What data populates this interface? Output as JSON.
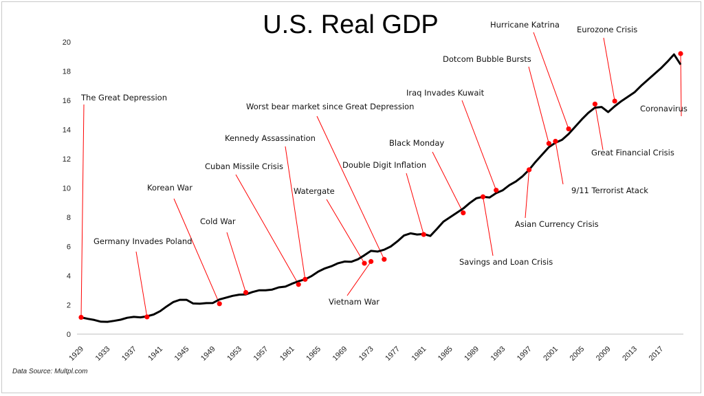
{
  "chart_data": {
    "type": "line",
    "title": "U.S. Real GDP",
    "xlabel": "",
    "ylabel": "",
    "ylim": [
      0,
      20
    ],
    "xlim": [
      1929,
      2020
    ],
    "yticks": [
      0,
      2,
      4,
      6,
      8,
      10,
      12,
      14,
      16,
      18,
      20
    ],
    "xticks": [
      1929,
      1933,
      1937,
      1941,
      1945,
      1949,
      1953,
      1957,
      1961,
      1965,
      1969,
      1973,
      1977,
      1981,
      1985,
      1989,
      1993,
      1997,
      2001,
      2005,
      2009,
      2013,
      2017
    ],
    "grid": false,
    "legend": "none",
    "series_color": "#000000",
    "marker_color": "#ff0000",
    "source": "Data Source: Multpl.com",
    "series": [
      {
        "x": [
          1929,
          1930,
          1931,
          1932,
          1933,
          1934,
          1935,
          1936,
          1937,
          1938,
          1939,
          1940,
          1941,
          1942,
          1943,
          1944,
          1945,
          1946,
          1947,
          1948,
          1949,
          1950,
          1951,
          1952,
          1953,
          1954,
          1955,
          1956,
          1957,
          1958,
          1959,
          1960,
          1961,
          1962,
          1963,
          1964,
          1965,
          1966,
          1967,
          1968,
          1969,
          1970,
          1971,
          1972,
          1973,
          1974,
          1975,
          1976,
          1977,
          1978,
          1979,
          1980,
          1981,
          1982,
          1983,
          1984,
          1985,
          1986,
          1987,
          1988,
          1989,
          1990,
          1991,
          1992,
          1993,
          1994,
          1995,
          1996,
          1997,
          1998,
          1999,
          2000,
          2001,
          2002,
          2003,
          2004,
          2005,
          2006,
          2007,
          2008,
          2009,
          2010,
          2011,
          2012,
          2013,
          2014,
          2015,
          2016,
          2017,
          2018,
          2019,
          2020
        ],
        "values": [
          1.15,
          1.05,
          0.97,
          0.85,
          0.84,
          0.91,
          0.99,
          1.12,
          1.18,
          1.15,
          1.22,
          1.34,
          1.57,
          1.9,
          2.2,
          2.35,
          2.35,
          2.1,
          2.08,
          2.12,
          2.13,
          2.37,
          2.5,
          2.62,
          2.7,
          2.72,
          2.88,
          3.0,
          3.0,
          3.05,
          3.2,
          3.25,
          3.45,
          3.62,
          3.75,
          3.98,
          4.28,
          4.5,
          4.65,
          4.85,
          4.97,
          4.95,
          5.12,
          5.4,
          5.7,
          5.65,
          5.78,
          6.0,
          6.35,
          6.75,
          6.9,
          6.82,
          6.85,
          6.72,
          7.2,
          7.7,
          8.0,
          8.3,
          8.6,
          8.98,
          9.3,
          9.4,
          9.35,
          9.65,
          9.85,
          10.2,
          10.45,
          10.8,
          11.25,
          11.8,
          12.3,
          12.8,
          13.1,
          13.3,
          13.7,
          14.2,
          14.7,
          15.15,
          15.5,
          15.55,
          15.2,
          15.6,
          15.95,
          16.25,
          16.55,
          17.0,
          17.4,
          17.8,
          18.2,
          18.65,
          19.15,
          18.45
        ]
      }
    ],
    "annotations": [
      {
        "label": "The Great Depression",
        "x": 1929,
        "y": 1.15
      },
      {
        "label": "Germany Invades Poland",
        "x": 1939,
        "y": 1.18
      },
      {
        "label": "Korean War",
        "x": 1950,
        "y": 2.08
      },
      {
        "label": "Cold War",
        "x": 1954,
        "y": 2.85
      },
      {
        "label": "Cuban Missile Crisis",
        "x": 1962,
        "y": 3.4
      },
      {
        "label": "Kennedy Assassination",
        "x": 1963,
        "y": 3.75
      },
      {
        "label": "Watergate",
        "x": 1972,
        "y": 4.85
      },
      {
        "label": "Vietnam War",
        "x": 1973,
        "y": 4.97
      },
      {
        "label": "Worst bear market since Great Depression",
        "x": 1975,
        "y": 5.12
      },
      {
        "label": "Double Digit Inflation",
        "x": 1981,
        "y": 6.82
      },
      {
        "label": "Black Monday",
        "x": 1987,
        "y": 8.3
      },
      {
        "label": "Savings and Loan Crisis",
        "x": 1990,
        "y": 9.4
      },
      {
        "label": "Iraq Invades Kuwait",
        "x": 1992,
        "y": 9.85
      },
      {
        "label": "Asian Currency  Crisis",
        "x": 1997,
        "y": 11.25
      },
      {
        "label": "Dotcom Bubble Bursts",
        "x": 2000,
        "y": 13.05
      },
      {
        "label": "9/11 Terrorist Atack",
        "x": 2001,
        "y": 13.2
      },
      {
        "label": "Hurricane Katrina",
        "x": 2003,
        "y": 14.05
      },
      {
        "label": "Great Financial Crisis",
        "x": 2007,
        "y": 15.75
      },
      {
        "label": "Eurozone Crisis",
        "x": 2010,
        "y": 15.95
      },
      {
        "label": "Coronavirus",
        "x": 2020,
        "y": 19.2
      }
    ]
  }
}
